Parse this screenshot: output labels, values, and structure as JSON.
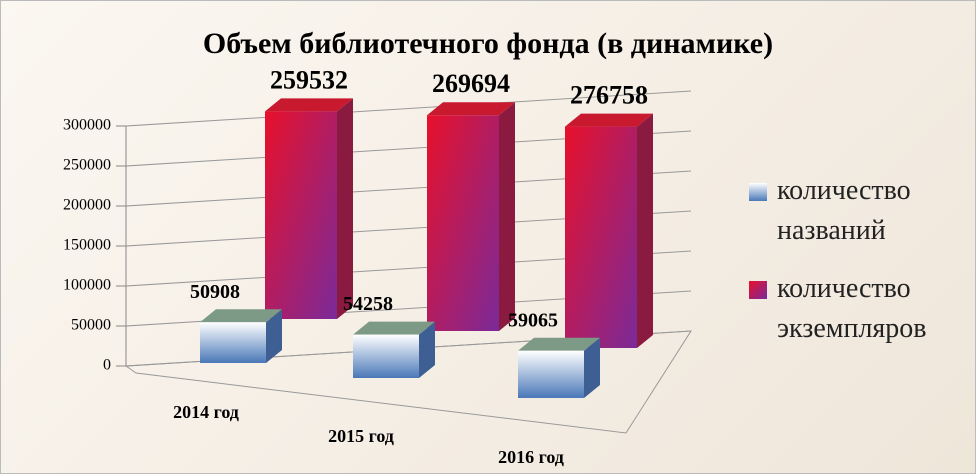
{
  "chart_data": {
    "type": "bar3d",
    "title": "Объем библиотечного фонда (в динамике)",
    "categories": [
      "2014 год",
      "2015 год",
      "2016 год"
    ],
    "series": [
      {
        "name": "количество названий",
        "color": "#4a78b8",
        "values": [
          50908,
          54258,
          59065
        ]
      },
      {
        "name": "количество экземпляров",
        "color": "#e8102a",
        "values": [
          259532,
          269694,
          276758
        ]
      }
    ],
    "ylim": [
      0,
      300000
    ],
    "yticks": [
      0,
      50000,
      100000,
      150000,
      200000,
      250000,
      300000
    ],
    "grid": true
  }
}
